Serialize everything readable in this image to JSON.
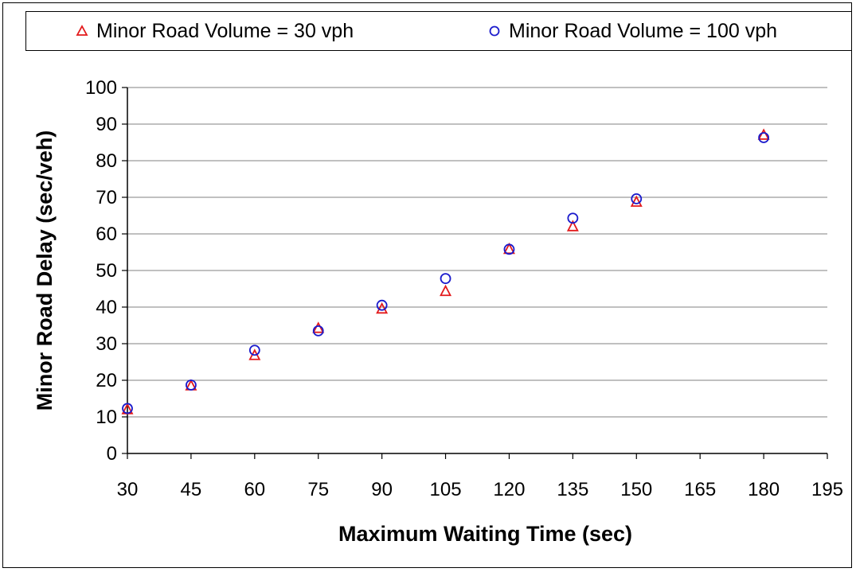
{
  "chart_data": {
    "type": "scatter",
    "title": "",
    "xlabel": "Maximum Waiting Time (sec)",
    "ylabel": "Minor Road Delay (sec/veh)",
    "xlim": [
      30,
      195
    ],
    "ylim": [
      0,
      100
    ],
    "xticks": [
      30,
      45,
      60,
      75,
      90,
      105,
      120,
      135,
      150,
      165,
      180,
      195
    ],
    "yticks": [
      0,
      10,
      20,
      30,
      40,
      50,
      60,
      70,
      80,
      90,
      100
    ],
    "grid": "horizontal",
    "legend_position": "top",
    "series": [
      {
        "name": "Minor Road Volume = 30 vph",
        "marker": "triangle",
        "color": "#e31a1c",
        "points": [
          {
            "x": 30,
            "y": 12.0
          },
          {
            "x": 45,
            "y": 18.5
          },
          {
            "x": 60,
            "y": 26.8
          },
          {
            "x": 75,
            "y": 34.2
          },
          {
            "x": 90,
            "y": 39.5
          },
          {
            "x": 105,
            "y": 44.3
          },
          {
            "x": 120,
            "y": 55.8
          },
          {
            "x": 135,
            "y": 62.0
          },
          {
            "x": 150,
            "y": 68.7
          },
          {
            "x": 180,
            "y": 87.0
          }
        ]
      },
      {
        "name": "Minor Road Volume = 100 vph",
        "marker": "circle",
        "color": "#1a1acc",
        "points": [
          {
            "x": 30,
            "y": 12.3
          },
          {
            "x": 45,
            "y": 18.7
          },
          {
            "x": 60,
            "y": 28.2
          },
          {
            "x": 75,
            "y": 33.5
          },
          {
            "x": 90,
            "y": 40.5
          },
          {
            "x": 105,
            "y": 47.8
          },
          {
            "x": 120,
            "y": 55.8
          },
          {
            "x": 135,
            "y": 64.3
          },
          {
            "x": 150,
            "y": 69.6
          },
          {
            "x": 180,
            "y": 86.3
          }
        ]
      }
    ]
  }
}
